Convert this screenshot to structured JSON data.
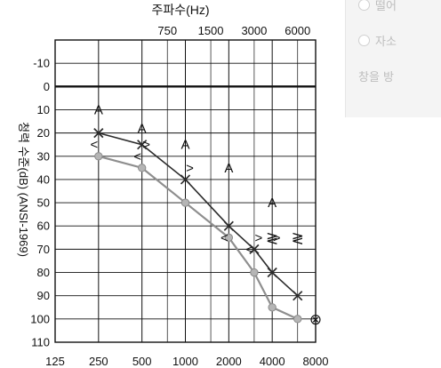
{
  "side_panel": {
    "items": [
      {
        "label": "떨어"
      },
      {
        "label": "자소"
      },
      {
        "label": "창을 방"
      }
    ]
  },
  "chart_data": {
    "type": "line",
    "title": "",
    "top_axis": {
      "label": "주파수(Hz)",
      "ticks": [
        750,
        1500,
        3000,
        6000
      ]
    },
    "x_ticks": [
      125,
      250,
      500,
      1000,
      2000,
      4000,
      8000
    ],
    "ylabel": "청력 수준(dB) (ANSI-1969)",
    "y_ticks": [
      -10,
      0,
      10,
      20,
      30,
      40,
      50,
      60,
      70,
      80,
      90,
      100,
      110
    ],
    "ylim": [
      -20,
      110
    ],
    "x_scale": "log2",
    "series": [
      {
        "symbol": "x",
        "color": "#2b2b2b",
        "x": [
          250,
          500,
          1000,
          2000,
          3000,
          4000,
          6000
        ],
        "y": [
          20,
          25,
          40,
          60,
          70,
          80,
          90
        ]
      },
      {
        "symbol": "o",
        "color": "#8e8e8e",
        "x": [
          250,
          500,
          1000,
          2000,
          3000,
          4000,
          6000
        ],
        "y": [
          30,
          35,
          50,
          65,
          80,
          95,
          100
        ]
      }
    ],
    "bone_left": {
      "symbol": "<",
      "x": [
        250,
        500,
        2000,
        3000
      ],
      "y": [
        25,
        30,
        65,
        70
      ]
    },
    "bone_right": {
      "symbol": ">",
      "x": [
        500,
        1000,
        3000,
        4000
      ],
      "y": [
        25,
        35,
        65,
        65
      ]
    },
    "masked_bone": {
      "symbol": "A",
      "x": [
        250,
        500,
        1000,
        2000,
        4000
      ],
      "y": [
        10,
        18,
        25,
        35,
        50
      ]
    },
    "extra_marks": [
      {
        "symbol": "≷",
        "x": 4000,
        "y": 65
      },
      {
        "symbol": "≷",
        "x": 6000,
        "y": 65
      },
      {
        "symbol": "⊗",
        "x": 8000,
        "y": 100
      }
    ]
  }
}
